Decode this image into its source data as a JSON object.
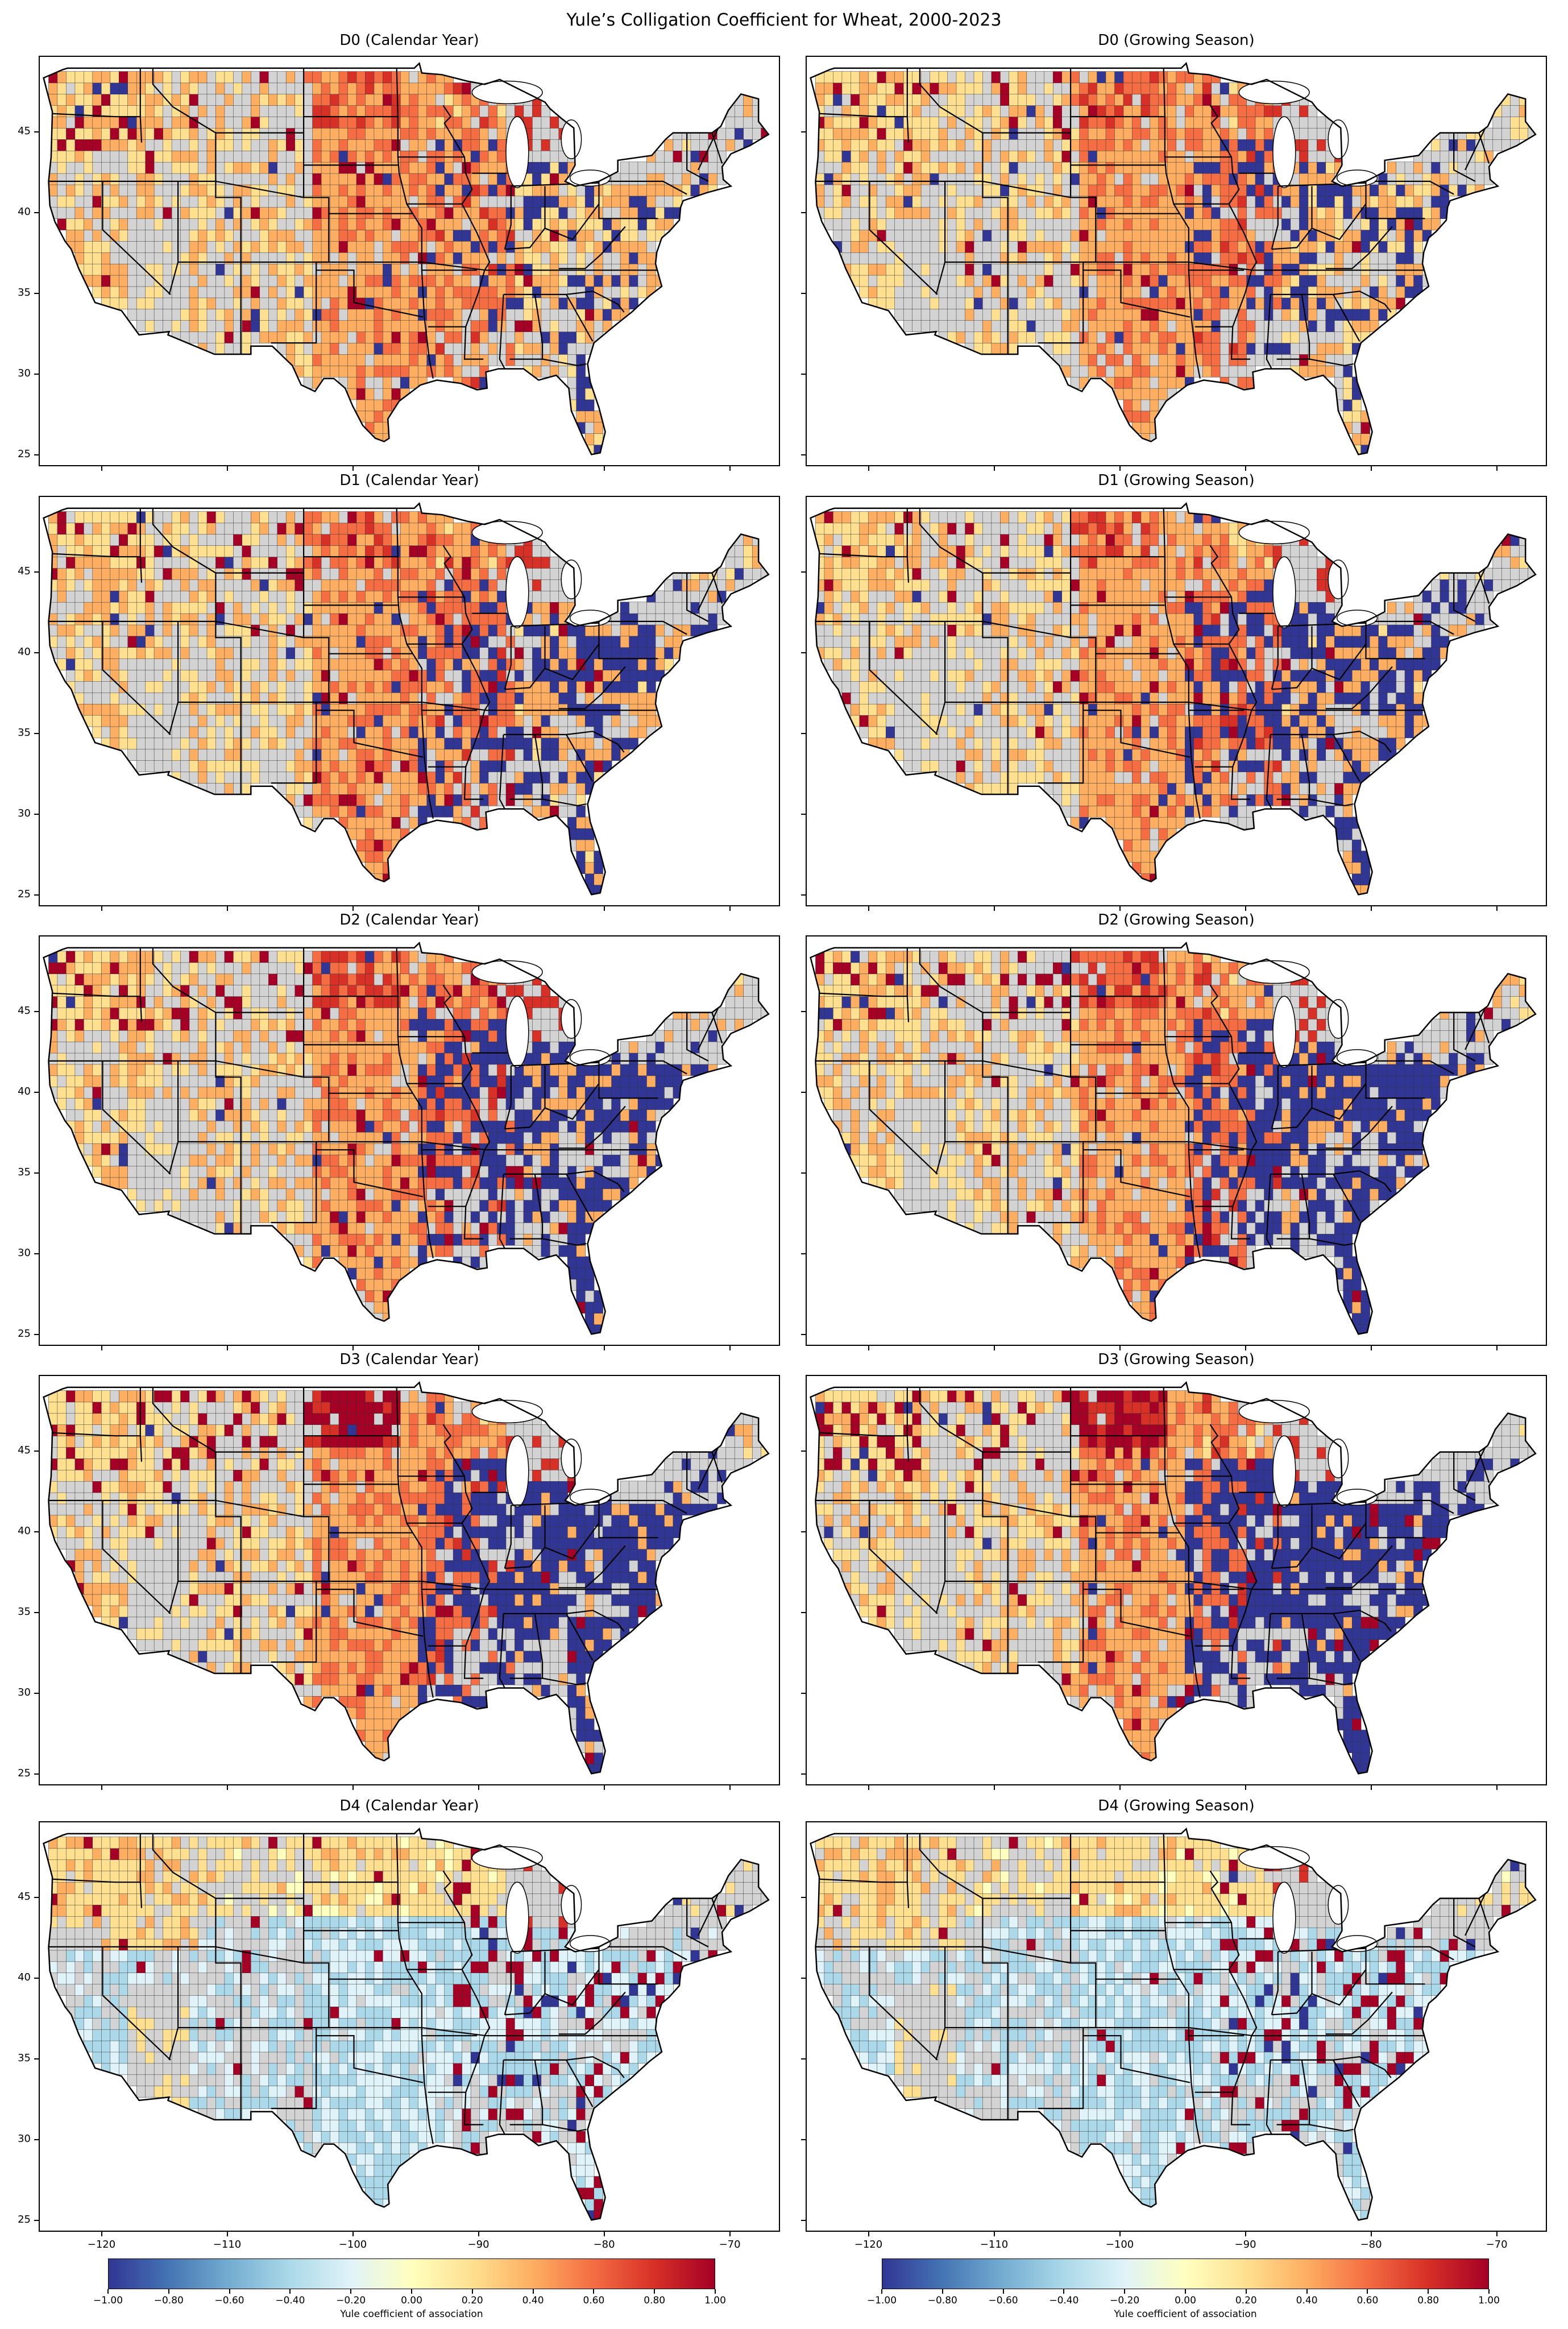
{
  "figure": {
    "title": "Yule’s Colligation Coefficient for Wheat, 2000-2023"
  },
  "panels": [
    {
      "title": "D0 (Calendar Year)",
      "dominant": "warm",
      "east_blue": 0.25,
      "north_red": 0.05
    },
    {
      "title": "D0 (Growing Season)",
      "dominant": "warm",
      "east_blue": 0.3,
      "north_red": 0.05
    },
    {
      "title": "D1 (Calendar Year)",
      "dominant": "warm",
      "east_blue": 0.45,
      "north_red": 0.05
    },
    {
      "title": "D1 (Growing Season)",
      "dominant": "warm",
      "east_blue": 0.5,
      "north_red": 0.05
    },
    {
      "title": "D2 (Calendar Year)",
      "dominant": "warm",
      "east_blue": 0.7,
      "north_red": 0.2
    },
    {
      "title": "D2 (Growing Season)",
      "dominant": "warm",
      "east_blue": 0.75,
      "north_red": 0.2
    },
    {
      "title": "D3 (Calendar Year)",
      "dominant": "warm",
      "east_blue": 0.8,
      "north_red": 0.8
    },
    {
      "title": "D3 (Growing Season)",
      "dominant": "warm",
      "east_blue": 0.85,
      "north_red": 0.85
    },
    {
      "title": "D4 (Calendar Year)",
      "dominant": "cool",
      "east_blue": 0.15,
      "north_red": 0.05
    },
    {
      "title": "D4 (Growing Season)",
      "dominant": "cool",
      "east_blue": 0.15,
      "north_red": 0.05
    }
  ],
  "axes": {
    "x_ticks": [
      "−120",
      "−110",
      "−100",
      "−90",
      "−80",
      "−70"
    ],
    "x_values": [
      -120,
      -110,
      -100,
      -90,
      -80,
      -70
    ],
    "y_ticks": [
      "45",
      "40",
      "35",
      "30",
      "25"
    ],
    "y_values": [
      45,
      40,
      35,
      30,
      25
    ],
    "lon_range": [
      -125,
      -66
    ],
    "lat_range": [
      24.3,
      49.7
    ]
  },
  "colorbar": {
    "label": "Yule coefficient of association",
    "ticks": [
      "−1.00",
      "−0.80",
      "−0.60",
      "−0.40",
      "−0.20",
      "0.00",
      "0.20",
      "0.40",
      "0.60",
      "0.80",
      "1.00"
    ],
    "range": [
      -1,
      1
    ],
    "colors": [
      "#313695",
      "#4575b4",
      "#74add1",
      "#abd9e9",
      "#e0f3f8",
      "#ffffbf",
      "#fee090",
      "#fdae61",
      "#f46d43",
      "#d73027",
      "#a50026"
    ],
    "nodata_color": "#d3d3d3"
  }
}
